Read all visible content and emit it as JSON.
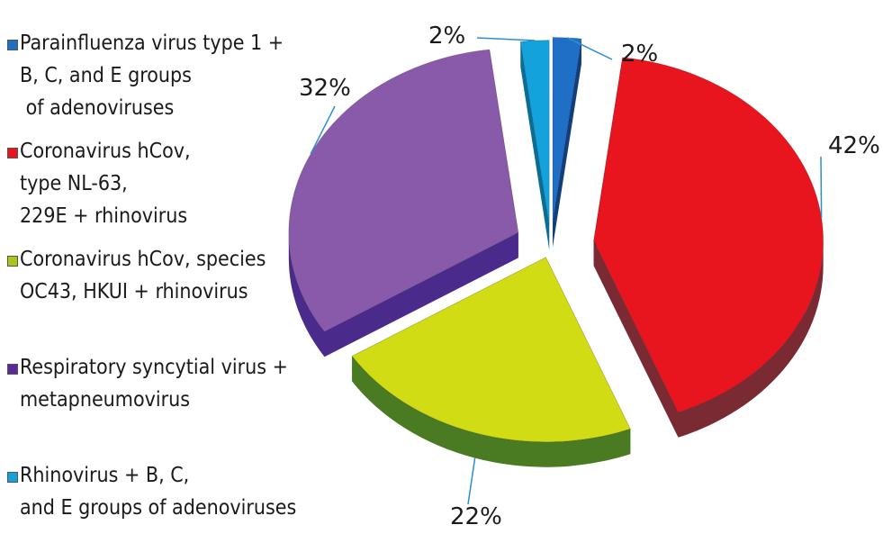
{
  "chart_data": {
    "type": "pie",
    "slices": [
      {
        "name": "Parainfluenza virus type 1 + B, C, and E groups of adenoviruses",
        "value": 2,
        "label": "2%",
        "color": "#1f6fc6"
      },
      {
        "name": "Coronavirus hCov, type NL-63, 229E + rhinovirus",
        "value": 42,
        "label": "42%",
        "color": "#e8141e"
      },
      {
        "name": "Coronavirus hCov, species OC43, HKUI + rhinovirus",
        "value": 22,
        "label": "22%",
        "color": "#d2dc14"
      },
      {
        "name": "Respiratory syncytial virus + metapneumovirus",
        "value": 32,
        "label": "32%",
        "color": "#8a5aaa"
      },
      {
        "name": "Rhinovirus + B, C, and E groups of adenoviruses",
        "value": 2,
        "label": "2%",
        "color": "#14a2dc"
      }
    ],
    "side_colors": [
      "#123f7a",
      "#7a2a33",
      "#4a7a22",
      "#4a2a8a",
      "#0a6d95"
    ],
    "leader_color": "#2a8fd0",
    "legend": [
      {
        "lines": [
          "Parainfluenza virus type 1 +",
          "B, C, and E groups",
          " of adenoviruses"
        ],
        "color": "#1f6fc6"
      },
      {
        "lines": [
          "Coronavirus hCov,",
          "type NL-63,",
          "229E + rhinovirus"
        ],
        "color": "#e8141e"
      },
      {
        "lines": [
          "Coronavirus hCov, species",
          "OC43, HKUI + rhinovirus"
        ],
        "color": "#a8c814"
      },
      {
        "lines": [
          "Respiratory syncytial virus +",
          "metapneumovirus"
        ],
        "color": "#5a2a9a"
      },
      {
        "lines": [
          "Rhinovirus + B, C,",
          "and E groups of adenoviruses"
        ],
        "color": "#14a2dc"
      }
    ],
    "legend_position": "left"
  }
}
